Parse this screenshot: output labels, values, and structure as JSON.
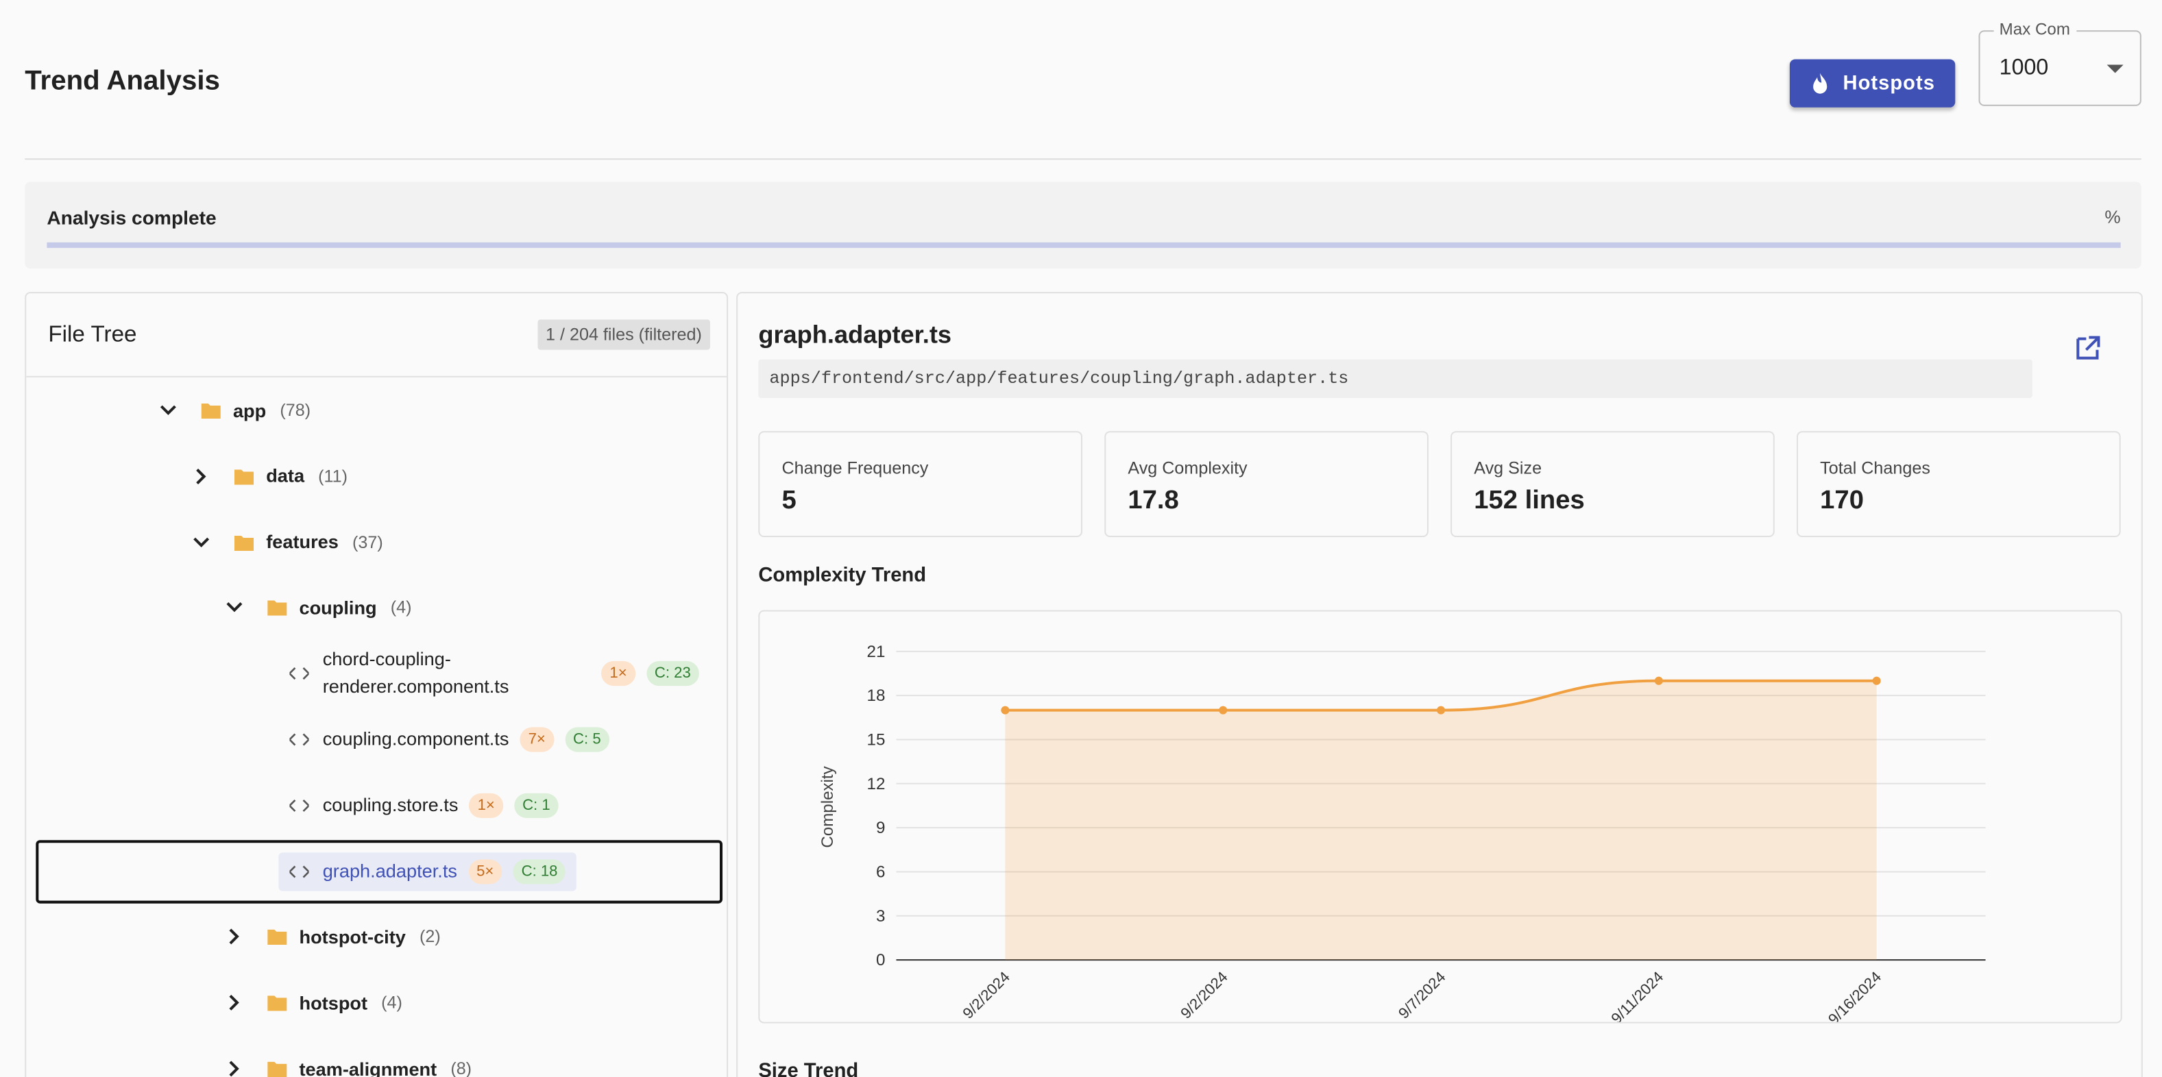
{
  "header": {
    "title": "Trend Analysis",
    "hotspots_button": "Hotspots",
    "max_label": "Max Com",
    "max_value": "1000"
  },
  "progress": {
    "label": "Analysis complete",
    "percent": "%"
  },
  "file_tree": {
    "title": "File Tree",
    "count": "1 / 204 files (filtered)",
    "items": [
      {
        "name": "app",
        "count": "(78)",
        "kind": "folder",
        "depth": 0,
        "open": true
      },
      {
        "name": "data",
        "count": "(11)",
        "kind": "folder",
        "depth": 1,
        "open": false
      },
      {
        "name": "features",
        "count": "(37)",
        "kind": "folder",
        "depth": 1,
        "open": true
      },
      {
        "name": "coupling",
        "count": "(4)",
        "kind": "folder",
        "depth": 2,
        "open": true
      },
      {
        "name": "chord-coupling-renderer.component.ts",
        "kind": "file",
        "depth": 3,
        "badges": [
          "1×",
          "C: 23"
        ]
      },
      {
        "name": "coupling.component.ts",
        "kind": "file",
        "depth": 3,
        "badges": [
          "7×",
          "C: 5"
        ]
      },
      {
        "name": "coupling.store.ts",
        "kind": "file",
        "depth": 3,
        "badges": [
          "1×",
          "C: 1"
        ]
      },
      {
        "name": "graph.adapter.ts",
        "kind": "file",
        "depth": 3,
        "badges": [
          "5×",
          "C: 18"
        ],
        "selected": true
      },
      {
        "name": "hotspot-city",
        "count": "(2)",
        "kind": "folder",
        "depth": 2,
        "open": false
      },
      {
        "name": "hotspot",
        "count": "(4)",
        "kind": "folder",
        "depth": 2,
        "open": false
      },
      {
        "name": "team-alignment",
        "count": "(8)",
        "kind": "folder",
        "depth": 2,
        "open": false
      }
    ]
  },
  "details": {
    "file_name": "graph.adapter.ts",
    "path": "apps/frontend/src/app/features/coupling/graph.adapter.ts",
    "stats": [
      {
        "label": "Change Frequency",
        "value": "5"
      },
      {
        "label": "Avg Complexity",
        "value": "17.8"
      },
      {
        "label": "Avg Size",
        "value": "152 lines"
      },
      {
        "label": "Total Changes",
        "value": "170"
      }
    ],
    "size_trend_title": "Size Trend"
  },
  "chart_data": {
    "type": "line",
    "title": "Complexity Trend",
    "y_label": "Complexity",
    "categories": [
      "9/2/2024",
      "9/2/2024",
      "9/7/2024",
      "9/11/2024",
      "9/16/2024"
    ],
    "values": [
      17,
      17,
      17,
      19,
      19
    ],
    "color": "#f0a040",
    "area": true,
    "grid": true,
    "ylim": [
      0,
      21
    ],
    "yticks": [
      0,
      3,
      6,
      9,
      12,
      15,
      18,
      21
    ]
  }
}
